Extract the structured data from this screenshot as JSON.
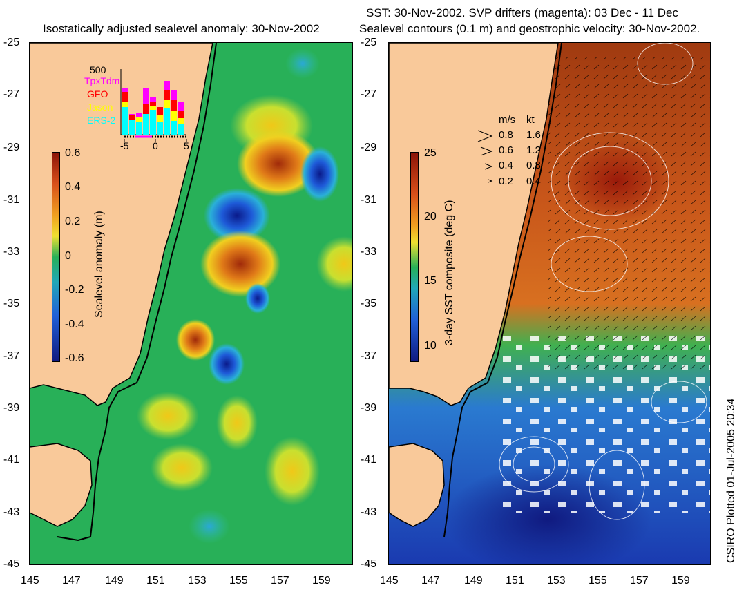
{
  "left_panel": {
    "title": "Isostatically adjusted sealevel anomaly: 30-Nov-2002",
    "colorbar": {
      "label": "Sealevel anomaly (m)",
      "ticks": [
        "0.6",
        "0.4",
        "0.2",
        "0",
        "-0.2",
        "-0.4",
        "-0.6"
      ]
    },
    "inset": {
      "ymax_label": "500",
      "satellites": [
        {
          "name": "TpxTdm",
          "color": "#ff00ff"
        },
        {
          "name": "GFO",
          "color": "#ff0000"
        },
        {
          "name": "Jason",
          "color": "#ffff00"
        },
        {
          "name": "ERS-2",
          "color": "#00ffff"
        }
      ],
      "xticks": [
        "-5",
        "0",
        "5"
      ]
    }
  },
  "right_panel": {
    "title_line1": "SST: 30-Nov-2002. SVP drifters (magenta): 03 Dec - 11 Dec",
    "title_line2": "Sealevel contours (0.1 m) and geostrophic velocity: 30-Nov-2002.",
    "colorbar": {
      "label": "3-day SST composite (deg C)",
      "ticks": [
        "25",
        "20",
        "15",
        "10"
      ]
    },
    "velocity_legend": {
      "headers": [
        "m/s",
        "kt"
      ],
      "rows": [
        {
          "ms": "0.8",
          "kt": "1.6"
        },
        {
          "ms": "0.6",
          "kt": "1.2"
        },
        {
          "ms": "0.4",
          "kt": "0.8"
        },
        {
          "ms": "0.2",
          "kt": "0.4"
        }
      ]
    }
  },
  "y_ticks": [
    "-25",
    "-27",
    "-29",
    "-31",
    "-33",
    "-35",
    "-37",
    "-39",
    "-41",
    "-43",
    "-45"
  ],
  "x_ticks": [
    "145",
    "147",
    "149",
    "151",
    "153",
    "155",
    "157",
    "159"
  ],
  "credit": "CSIRO Plotted 01-Jul-2005 20:34",
  "colors": {
    "land": "#f9c99a",
    "ocean_base": "#22b060",
    "sst_warm": "#d4641a",
    "sst_cold": "#1d50c8"
  }
}
